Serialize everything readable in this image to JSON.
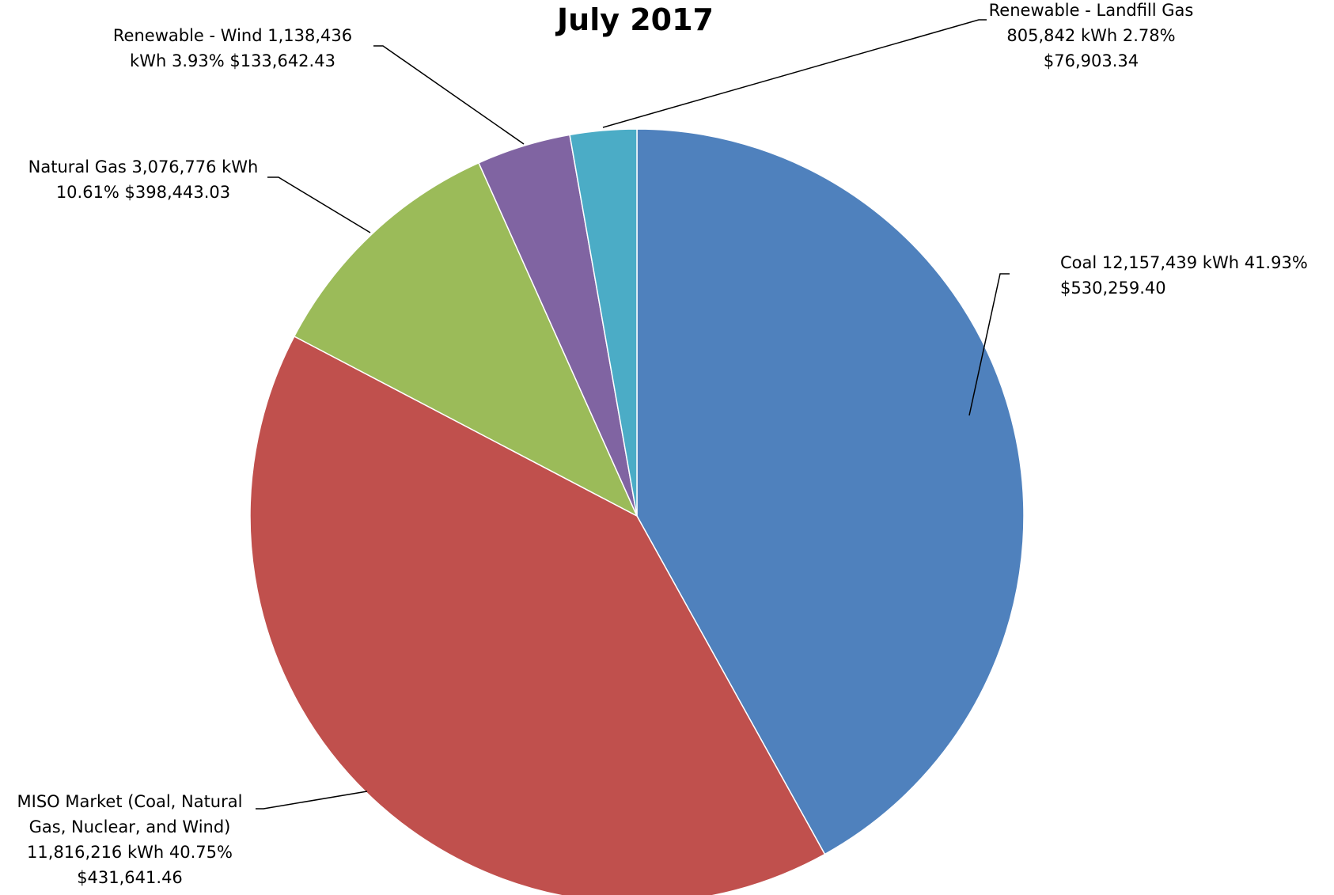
{
  "chart_data": {
    "type": "pie",
    "title": "July 2017",
    "slices": [
      {
        "name": "Coal",
        "kwh": 12157439,
        "percent": 41.93,
        "cost": 530259.4,
        "color": "#4F81BD",
        "label_lines": [
          "Coal  12,157,439  kWh 41.93%",
          "$530,259.40"
        ]
      },
      {
        "name": "MISO Market (Coal, Natural Gas, Nuclear, and Wind)",
        "kwh": 11816216,
        "percent": 40.75,
        "cost": 431641.46,
        "color": "#C0504D",
        "label_lines": [
          "MISO Market (Coal, Natural",
          "Gas, Nuclear, and Wind)",
          "11,816,216  kWh 40.75%",
          "$431,641.46"
        ]
      },
      {
        "name": "Natural Gas",
        "kwh": 3076776,
        "percent": 10.61,
        "cost": 398443.03,
        "color": "#9BBB59",
        "label_lines": [
          "Natural Gas  3,076,776  kWh",
          "10.61%  $398,443.03"
        ]
      },
      {
        "name": "Renewable - Wind",
        "kwh": 1138436,
        "percent": 3.93,
        "cost": 133642.43,
        "color": "#8064A2",
        "label_lines": [
          "Renewable - Wind  1,138,436",
          "kWh 3.93%  $133,642.43"
        ]
      },
      {
        "name": "Renewable - Landfill Gas",
        "kwh": 805842,
        "percent": 2.78,
        "cost": 76903.34,
        "color": "#4BACC6",
        "label_lines": [
          "Renewable - Landfill Gas",
          "805,842  kWh 2.78%",
          "$76,903.34"
        ]
      }
    ]
  }
}
